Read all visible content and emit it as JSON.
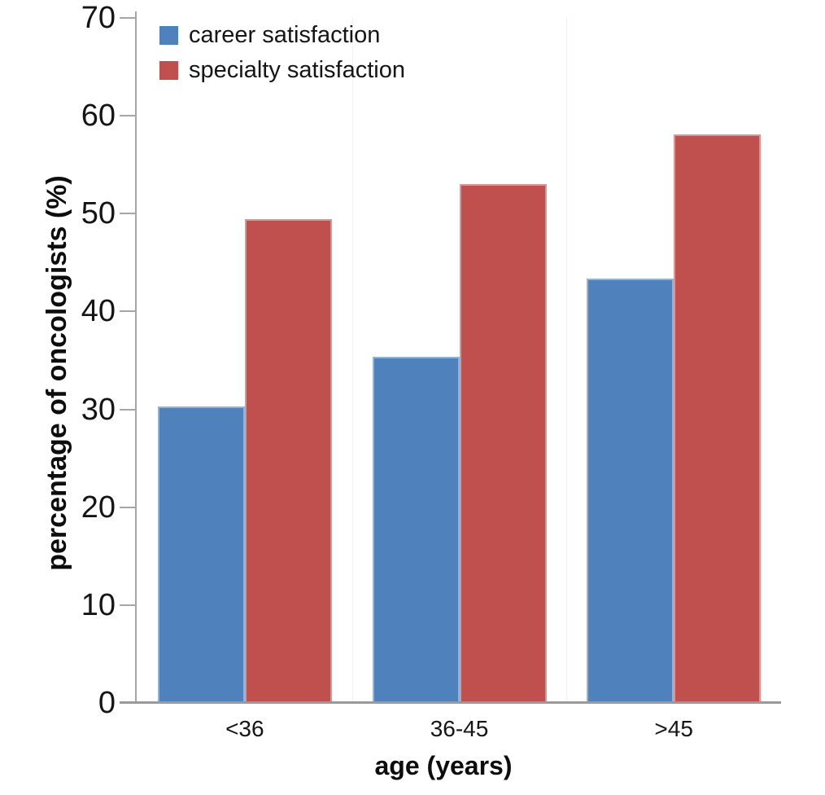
{
  "chart_data": {
    "type": "bar",
    "title": "",
    "categories": [
      "<36",
      "36-45",
      ">45"
    ],
    "series": [
      {
        "name": "career satisfaction",
        "color": "#4F81BD",
        "values": [
          30.3,
          35.4,
          43.4
        ]
      },
      {
        "name": "specialty satisfaction",
        "color": "#C0504D",
        "values": [
          49.4,
          53.0,
          58.1
        ]
      }
    ],
    "xlabel": "age (years)",
    "ylabel": "percentage of oncologists (%)",
    "ylim": [
      0,
      70
    ],
    "yticks": [
      0,
      10,
      20,
      30,
      40,
      50,
      60,
      70
    ],
    "grid": "none",
    "legend_position": "top-left-inside",
    "axis_color": "#a6a6a6",
    "baseline_color": "#9a9a9a",
    "text_color": "#151515"
  }
}
